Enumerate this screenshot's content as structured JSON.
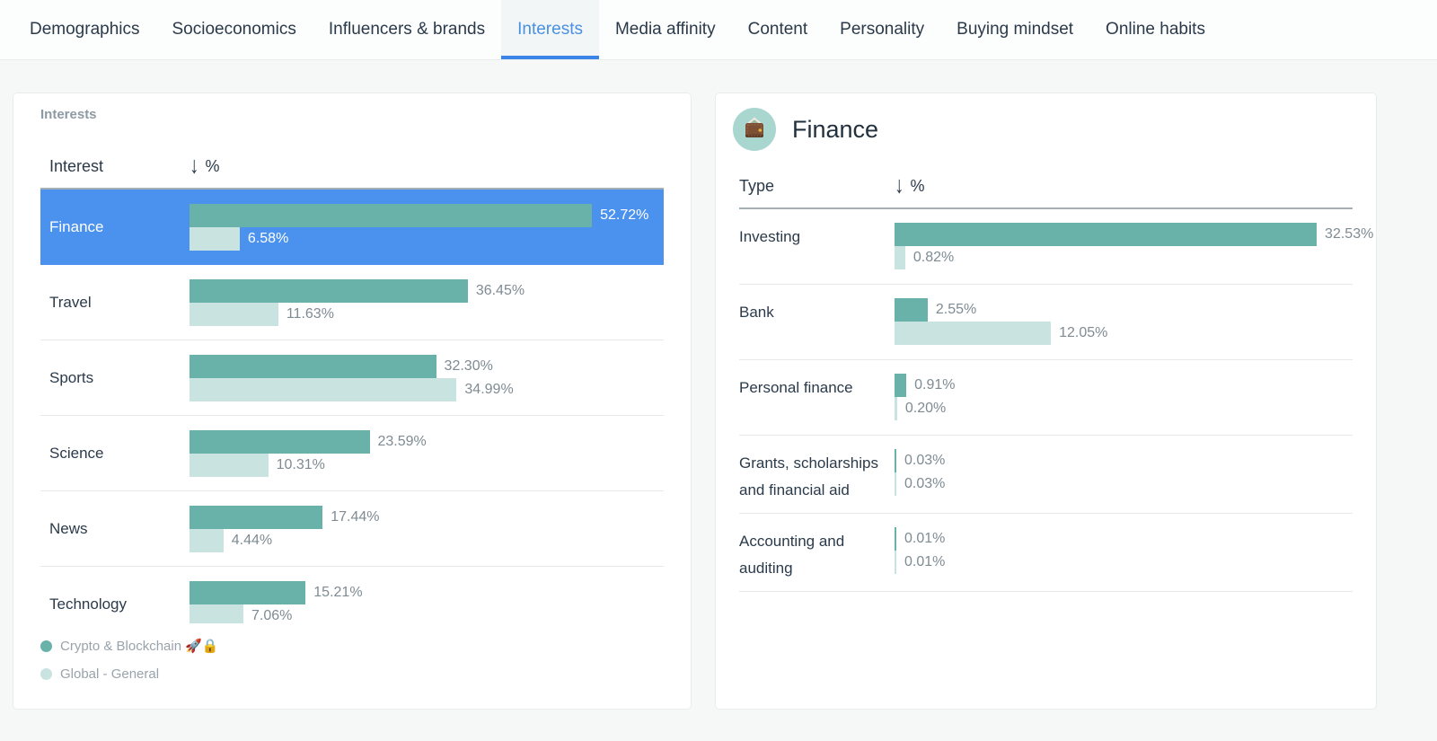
{
  "tabs": {
    "items": [
      {
        "label": "Demographics",
        "active": false
      },
      {
        "label": "Socioeconomics",
        "active": false
      },
      {
        "label": "Influencers & brands",
        "active": false
      },
      {
        "label": "Interests",
        "active": true
      },
      {
        "label": "Media affinity",
        "active": false
      },
      {
        "label": "Content",
        "active": false
      },
      {
        "label": "Personality",
        "active": false
      },
      {
        "label": "Buying mindset",
        "active": false
      },
      {
        "label": "Online habits",
        "active": false
      }
    ]
  },
  "left_panel": {
    "title": "Interests",
    "columns": {
      "name": "Interest",
      "percent": "%"
    },
    "sort_icon": "↓",
    "rows": [
      {
        "label": "Finance",
        "primary_pct": "52.72%",
        "primary_value": 52.72,
        "secondary_pct": "6.58%",
        "secondary_value": 6.58,
        "highlighted": true
      },
      {
        "label": "Travel",
        "primary_pct": "36.45%",
        "primary_value": 36.45,
        "secondary_pct": "11.63%",
        "secondary_value": 11.63,
        "highlighted": false
      },
      {
        "label": "Sports",
        "primary_pct": "32.30%",
        "primary_value": 32.3,
        "secondary_pct": "34.99%",
        "secondary_value": 34.99,
        "highlighted": false
      },
      {
        "label": "Science",
        "primary_pct": "23.59%",
        "primary_value": 23.59,
        "secondary_pct": "10.31%",
        "secondary_value": 10.31,
        "highlighted": false
      },
      {
        "label": "News",
        "primary_pct": "17.44%",
        "primary_value": 17.44,
        "secondary_pct": "4.44%",
        "secondary_value": 4.44,
        "highlighted": false
      },
      {
        "label": "Technology",
        "primary_pct": "15.21%",
        "primary_value": 15.21,
        "secondary_pct": "7.06%",
        "secondary_value": 7.06,
        "highlighted": false
      }
    ],
    "legend": [
      {
        "label": "Crypto & Blockchain 🚀🔒",
        "color": "#68b2aa"
      },
      {
        "label": "Global - General",
        "color": "#c9e4e0"
      }
    ]
  },
  "right_panel": {
    "title": "Finance",
    "icon": "wallet-icon",
    "columns": {
      "name": "Type",
      "percent": "%"
    },
    "sort_icon": "↓",
    "rows": [
      {
        "label": "Investing",
        "primary_pct": "32.53%",
        "primary_value": 32.53,
        "secondary_pct": "0.82%",
        "secondary_value": 0.82
      },
      {
        "label": "Bank",
        "primary_pct": "2.55%",
        "primary_value": 2.55,
        "secondary_pct": "12.05%",
        "secondary_value": 12.05
      },
      {
        "label": "Personal finance",
        "primary_pct": "0.91%",
        "primary_value": 0.91,
        "secondary_pct": "0.20%",
        "secondary_value": 0.2
      },
      {
        "label": "Grants, scholarships and financial aid",
        "primary_pct": "0.03%",
        "primary_value": 0.03,
        "secondary_pct": "0.03%",
        "secondary_value": 0.03
      },
      {
        "label": "Accounting and auditing",
        "primary_pct": "0.01%",
        "primary_value": 0.01,
        "secondary_pct": "0.01%",
        "secondary_value": 0.01
      }
    ]
  },
  "colors": {
    "highlight_blue": "#4b92ee",
    "active_tab_blue": "#4a90e2",
    "tab_underline_blue": "#3c83e8",
    "bar_primary_teal": "#68b2aa",
    "bar_secondary_teal": "#c9e4e0",
    "icon_circle_teal": "#a9d6cf"
  }
}
